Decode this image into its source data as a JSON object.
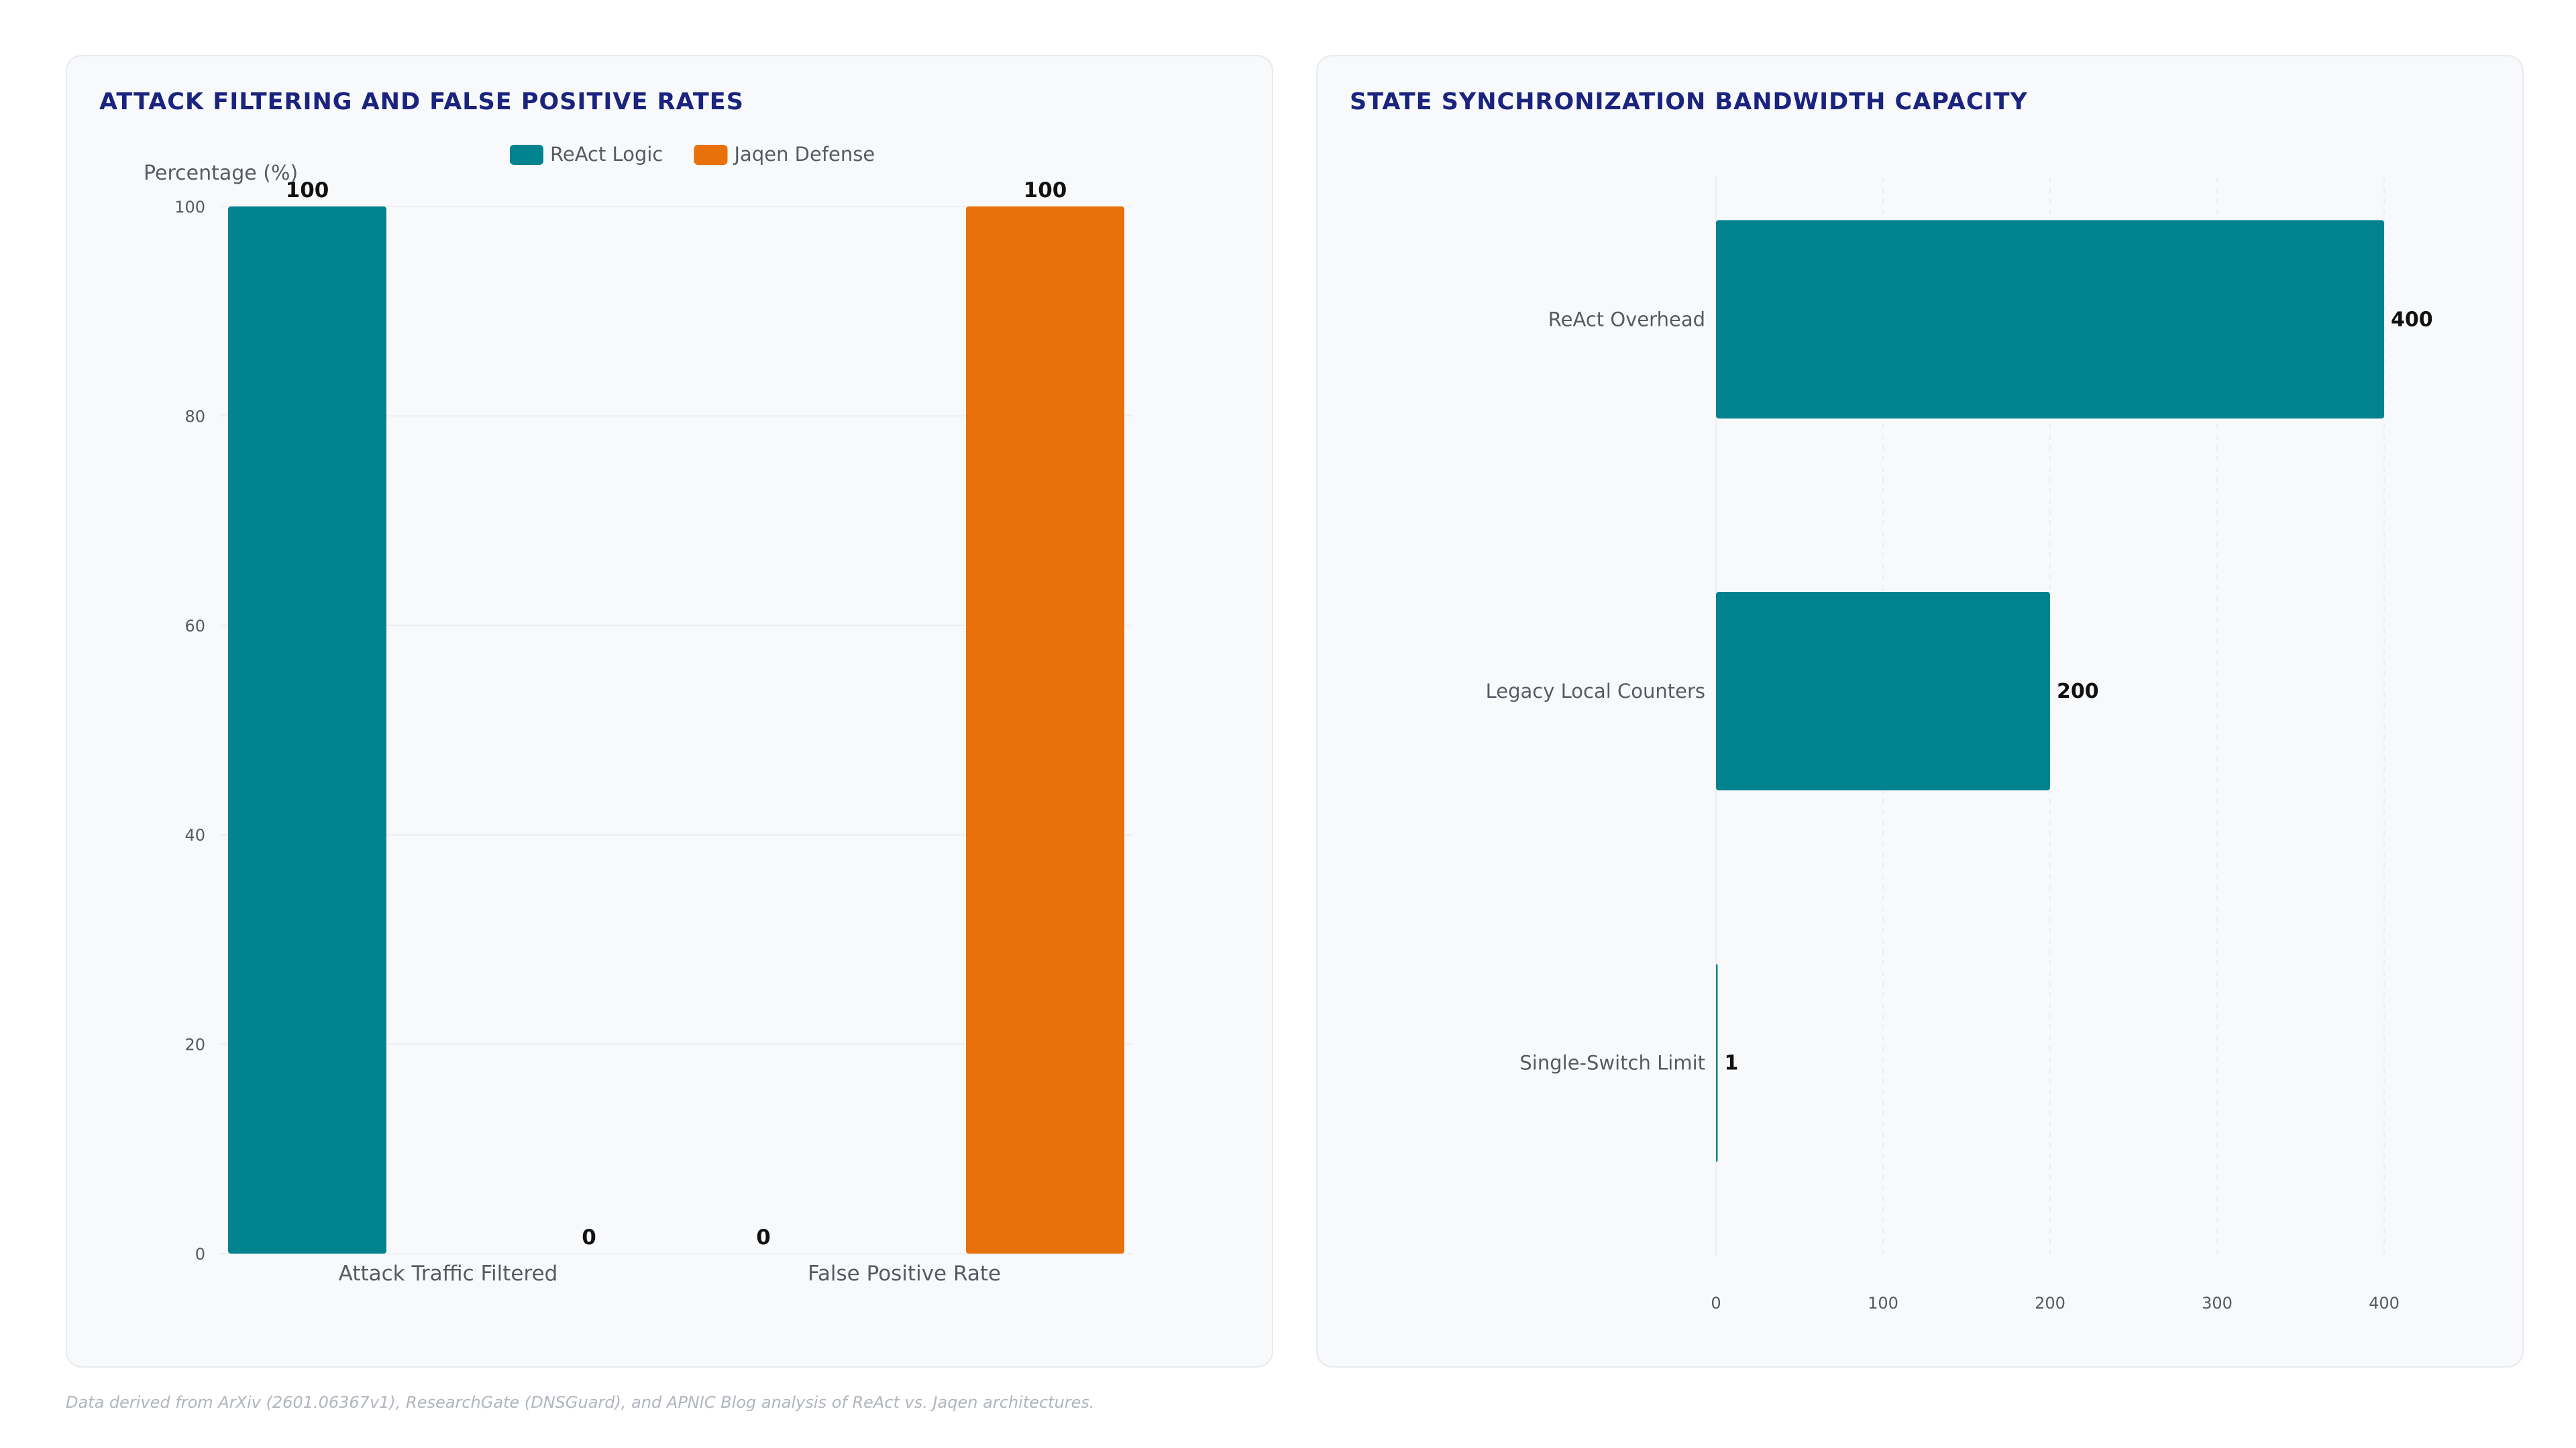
{
  "colors": {
    "react": "#00838f",
    "jaqen": "#e8710a",
    "title": "#1a237e",
    "grid": "#eceef1",
    "axis_text": "#555b63",
    "label_text": "#111111"
  },
  "chart_data": [
    {
      "type": "bar",
      "title": "ATTACK FILTERING AND FALSE POSITIVE RATES",
      "categories": [
        "Attack Traffic Filtered",
        "False Positive Rate"
      ],
      "series": [
        {
          "name": "ReAct Logic",
          "values": [
            100,
            0
          ],
          "color": "#00838f"
        },
        {
          "name": "Jaqen Defense",
          "values": [
            0,
            100
          ],
          "color": "#e8710a"
        }
      ],
      "xlabel": "",
      "ylabel": "Percentage (%)",
      "ylim": [
        0,
        100
      ],
      "yticks": [
        0,
        20,
        40,
        60,
        80,
        100
      ],
      "legend": "top-center",
      "grid": true
    },
    {
      "type": "bar",
      "orientation": "horizontal",
      "title": "STATE SYNCHRONIZATION BANDWIDTH CAPACITY",
      "categories": [
        "ReAct Overhead",
        "Legacy Local Counters",
        "Single-Switch Limit"
      ],
      "values": [
        400,
        200,
        1
      ],
      "color": "#00838f",
      "xlabel": "",
      "ylabel": "",
      "xlim": [
        0,
        400
      ],
      "xticks": [
        0,
        100,
        200,
        300,
        400
      ],
      "grid": true
    }
  ],
  "footnote": "Data derived from ArXiv (2601.06367v1), ResearchGate (DNSGuard), and APNIC Blog analysis of ReAct vs. Jaqen architectures."
}
